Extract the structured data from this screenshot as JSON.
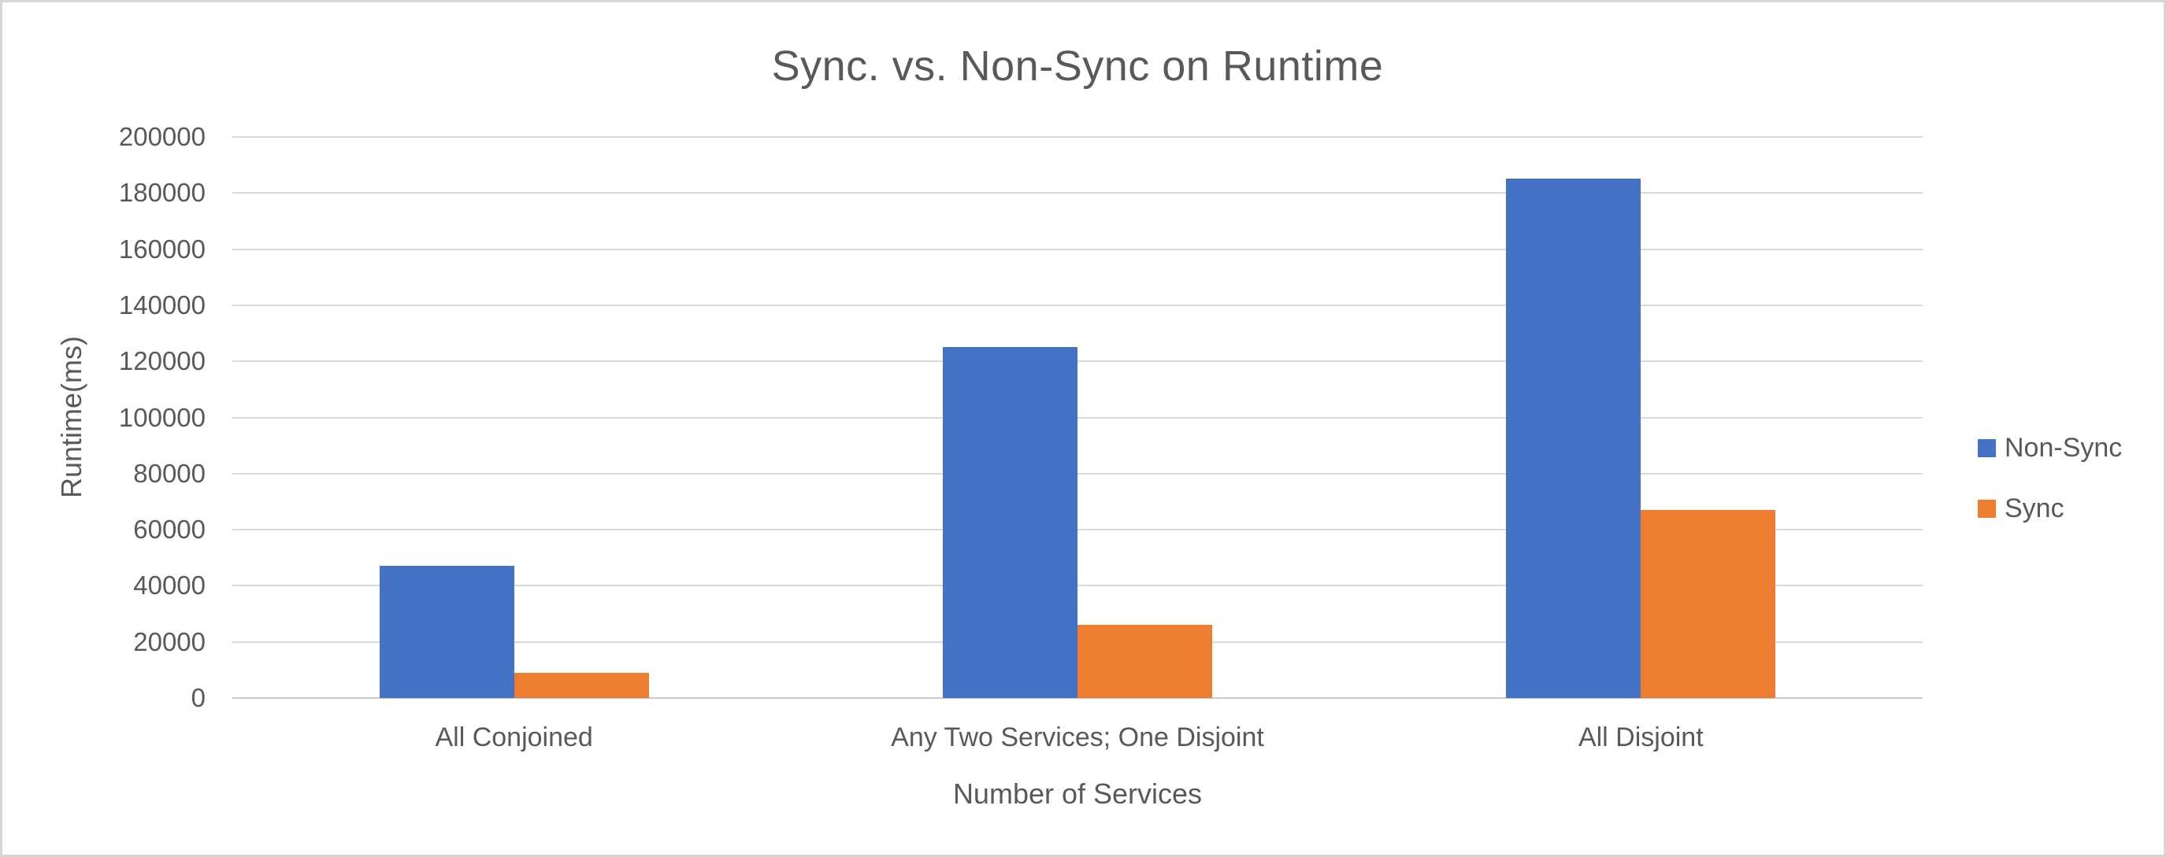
{
  "chart_data": {
    "type": "bar",
    "title": "Sync. vs. Non-Sync on Runtime",
    "xlabel": "Number of Services",
    "ylabel": "Runtime(ms)",
    "categories": [
      "All Conjoined",
      "Any Two Services; One Disjoint",
      "All Disjoint"
    ],
    "series": [
      {
        "name": "Non-Sync",
        "color": "#4472C4",
        "values": [
          47000,
          125000,
          185000
        ]
      },
      {
        "name": "Sync",
        "color": "#ED7D31",
        "values": [
          9000,
          26000,
          67000
        ]
      }
    ],
    "ylim": [
      0,
      200000
    ],
    "ytick_step": 20000,
    "ytick_labels": [
      "0",
      "20000",
      "40000",
      "60000",
      "80000",
      "100000",
      "120000",
      "140000",
      "160000",
      "180000",
      "200000"
    ],
    "grid": true,
    "legend_position": "right"
  },
  "style": {
    "text_color": "#595959",
    "gridline_color": "#D9D9D9",
    "axis_line_color": "#C9C9C9",
    "canvas_border_color": "#D6D6D6",
    "background_color": "#FFFFFF"
  }
}
